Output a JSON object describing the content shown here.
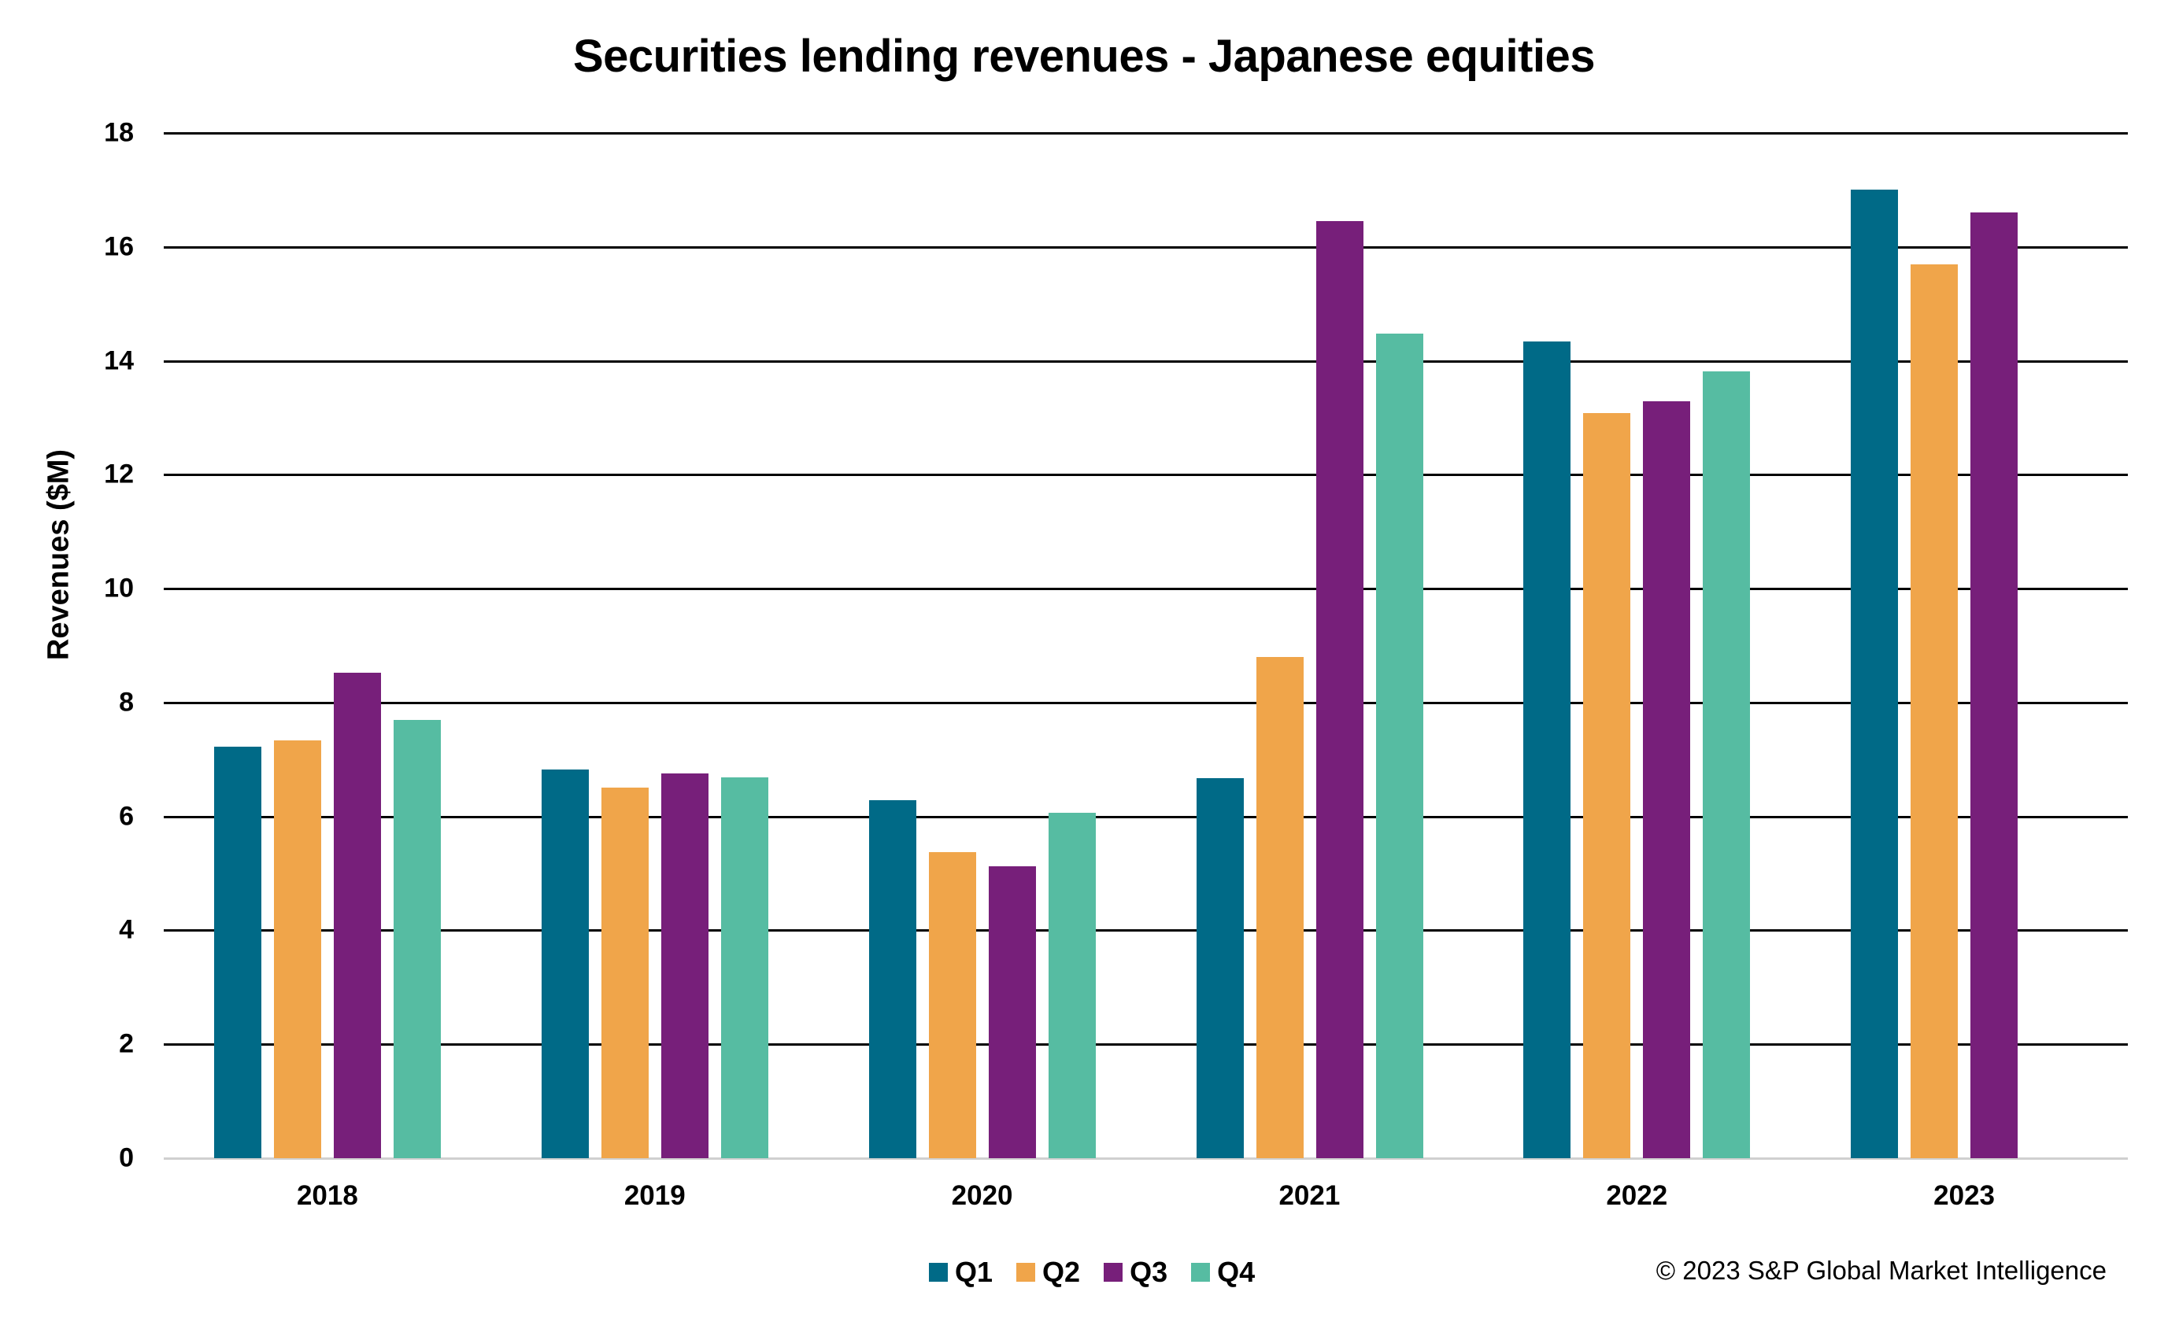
{
  "title": "Securities lending revenues - Japanese equities",
  "copyright": "© 2023 S&P Global Market Intelligence",
  "colors": {
    "Q1": "#006A87",
    "Q2": "#F0A54A",
    "Q3": "#771F7A",
    "Q4": "#56BCA2",
    "gridline": "#000000",
    "baseline": "#D0D0D0"
  },
  "legend": [
    {
      "label": "Q1",
      "color": "#006A87"
    },
    {
      "label": "Q2",
      "color": "#F0A54A"
    },
    {
      "label": "Q3",
      "color": "#771F7A"
    },
    {
      "label": "Q4",
      "color": "#56BCA2"
    }
  ],
  "chart_data": {
    "type": "bar",
    "title": "Securities lending revenues - Japanese equities",
    "xlabel": "",
    "ylabel": "Revenues ($M)",
    "ylim": [
      0,
      18
    ],
    "yticks": [
      0,
      2,
      4,
      6,
      8,
      10,
      12,
      14,
      16,
      18
    ],
    "grid": true,
    "legend_position": "bottom",
    "categories": [
      "2018",
      "2019",
      "2020",
      "2021",
      "2022",
      "2023"
    ],
    "series": [
      {
        "name": "Q1",
        "color": "#006A87",
        "values": [
          7.22,
          6.83,
          6.29,
          6.67,
          14.34,
          17.0
        ]
      },
      {
        "name": "Q2",
        "color": "#F0A54A",
        "values": [
          7.34,
          6.5,
          5.38,
          8.8,
          13.08,
          15.7
        ]
      },
      {
        "name": "Q3",
        "color": "#771F7A",
        "values": [
          8.53,
          6.76,
          5.12,
          16.45,
          13.29,
          16.6
        ]
      },
      {
        "name": "Q4",
        "color": "#56BCA2",
        "values": [
          7.69,
          6.68,
          6.06,
          14.48,
          13.82,
          null
        ]
      }
    ],
    "annotations": [
      "© 2023 S&P Global Market Intelligence"
    ]
  }
}
